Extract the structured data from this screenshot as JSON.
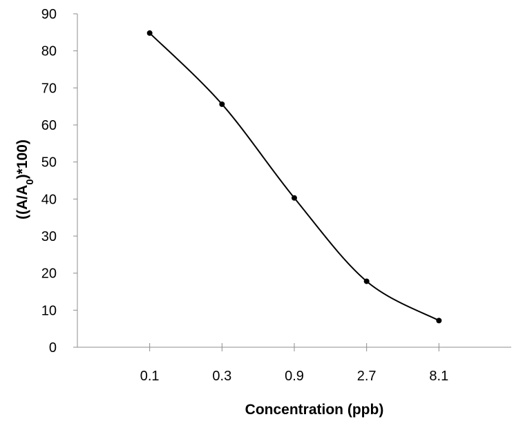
{
  "chart_data": {
    "type": "line",
    "title": "",
    "xlabel": "Concentration (ppb)",
    "ylabel_prefix": "((A/A",
    "ylabel_subscript": "0",
    "ylabel_suffix": ")*100)",
    "categories": [
      "0.1",
      "0.3",
      "0.9",
      "2.7",
      "8.1"
    ],
    "series": [
      {
        "values": [
          84.8,
          65.6,
          40.3,
          17.8,
          7.2
        ]
      }
    ],
    "ylim": [
      0,
      90
    ],
    "yticks": [
      "0",
      "10",
      "20",
      "30",
      "40",
      "50",
      "60",
      "70",
      "80",
      "90"
    ],
    "grid": false,
    "legend": "none",
    "line_color": "#000000",
    "smooth": true
  }
}
